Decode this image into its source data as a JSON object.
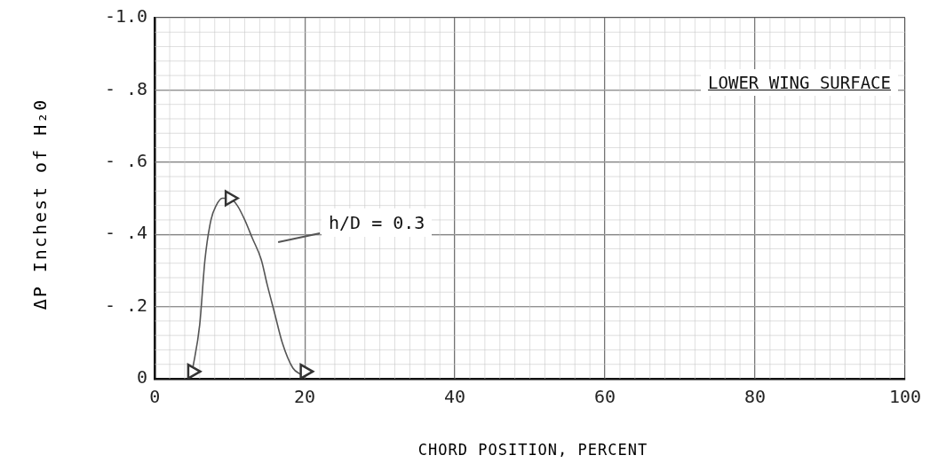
{
  "chart_data": {
    "type": "scatter",
    "xlabel": "CHORD POSITION, PERCENT",
    "ylabel": "ΔP  Inchest of H₂0",
    "series": [
      {
        "color": "#333333",
        "marker": "triangle",
        "x": [
          5,
          10,
          20
        ],
        "values": [
          -0.02,
          -0.5,
          -0.02
        ]
      },
      {
        "type": "line",
        "color": "#555555",
        "line_style": "solid",
        "x": [
          5,
          6,
          6.7,
          7.5,
          8.2,
          9,
          10,
          11,
          12,
          13,
          14.2,
          15,
          16,
          17,
          18.4,
          19.6
        ],
        "values": [
          -0.02,
          -0.15,
          -0.33,
          -0.44,
          -0.48,
          -0.5,
          -0.5,
          -0.48,
          -0.44,
          -0.39,
          -0.33,
          -0.26,
          -0.18,
          -0.1,
          -0.03,
          -0.01
        ]
      }
    ],
    "xlim": [
      0,
      100
    ],
    "xticks": [
      0,
      20,
      40,
      60,
      80,
      100
    ],
    "ylim": [
      0,
      -1.0
    ],
    "yticks": [
      {
        "value": 0,
        "label": "0"
      },
      {
        "value": -0.2,
        "label": "- .2"
      },
      {
        "value": -0.4,
        "label": "- .4"
      },
      {
        "value": -0.6,
        "label": "- .6"
      },
      {
        "value": -0.8,
        "label": "- .8"
      },
      {
        "value": -1.0,
        "label": "-1.0"
      }
    ],
    "grid": true,
    "annotations": [
      "h/D = 0.3",
      "LOWER WING SURFACE"
    ]
  }
}
